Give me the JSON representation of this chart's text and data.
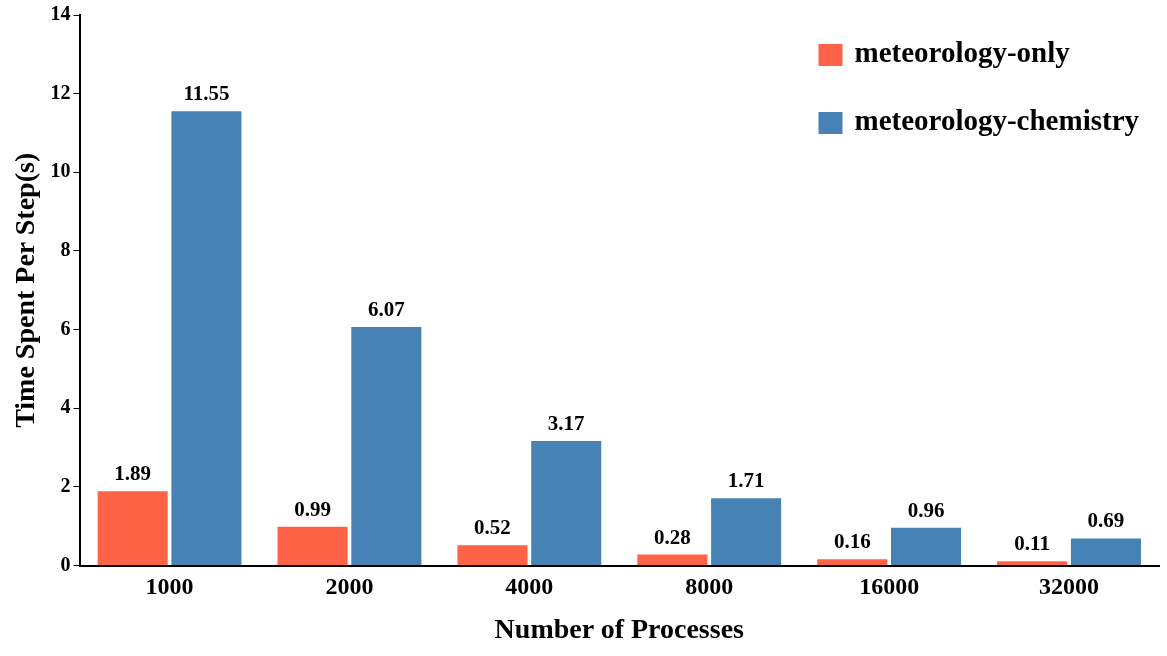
{
  "chart_data": {
    "type": "bar",
    "xlabel": "Number of Processes",
    "ylabel": "Time Spent Per Step(s)",
    "categories": [
      "1000",
      "2000",
      "4000",
      "8000",
      "16000",
      "32000"
    ],
    "series": [
      {
        "name": "meteorology-only",
        "color": "#fe6347",
        "values": [
          1.89,
          0.99,
          0.52,
          0.28,
          0.16,
          0.11
        ]
      },
      {
        "name": "meteorology-chemistry",
        "color": "#4682b4",
        "values": [
          11.55,
          6.07,
          3.17,
          1.71,
          0.96,
          0.69
        ]
      }
    ],
    "ylim": [
      0,
      14
    ],
    "yticks": [
      0,
      2,
      4,
      6,
      8,
      10,
      12,
      14
    ],
    "data_labels": true,
    "grid": false,
    "legend": "top right"
  }
}
